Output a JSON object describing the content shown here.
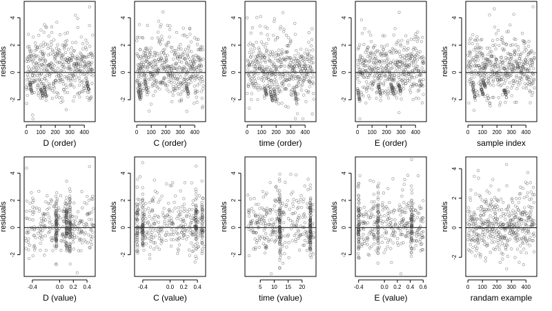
{
  "chart_data": [
    {
      "type": "scatter",
      "xlabel": "D (order)",
      "ylabel": "residuals",
      "xlim": [
        -15,
        475
      ],
      "ylim": [
        -3.6,
        5.2
      ],
      "xticks": [
        0,
        100,
        200,
        300,
        400
      ],
      "yticks": [
        -2,
        0,
        2,
        4
      ],
      "xtick_labels": [
        "0",
        "100",
        "200",
        "300",
        "400"
      ],
      "ytick_labels": [
        "-2",
        "0",
        "2",
        "4"
      ],
      "reference_line": 0,
      "grid": false,
      "gen": {
        "kind": "order",
        "seed": 11,
        "n": 460
      }
    },
    {
      "type": "scatter",
      "xlabel": "C (order)",
      "ylabel": "residuals",
      "xlim": [
        -15,
        475
      ],
      "ylim": [
        -3.6,
        5.2
      ],
      "xticks": [
        0,
        100,
        200,
        300,
        400
      ],
      "yticks": [
        -2,
        0,
        2,
        4
      ],
      "xtick_labels": [
        "0",
        "100",
        "200",
        "300",
        "400"
      ],
      "ytick_labels": [
        "-2",
        "0",
        "2",
        "4"
      ],
      "reference_line": 0,
      "grid": false,
      "gen": {
        "kind": "order",
        "seed": 23,
        "n": 460
      }
    },
    {
      "type": "scatter",
      "xlabel": "time (order)",
      "ylabel": "residuals",
      "xlim": [
        -15,
        475
      ],
      "ylim": [
        -3.6,
        5.2
      ],
      "xticks": [
        0,
        100,
        200,
        300,
        400
      ],
      "yticks": [
        -2,
        0,
        2,
        4
      ],
      "xtick_labels": [
        "0",
        "100",
        "200",
        "300",
        "400"
      ],
      "ytick_labels": [
        "-2",
        "0",
        "2",
        "4"
      ],
      "reference_line": 0,
      "grid": false,
      "gen": {
        "kind": "order",
        "seed": 37,
        "n": 460
      }
    },
    {
      "type": "scatter",
      "xlabel": "E (order)",
      "ylabel": "residuals",
      "xlim": [
        -15,
        475
      ],
      "ylim": [
        -3.6,
        5.2
      ],
      "xticks": [
        0,
        100,
        200,
        300,
        400
      ],
      "yticks": [
        -2,
        0,
        2,
        4
      ],
      "xtick_labels": [
        "0",
        "100",
        "200",
        "300",
        "400"
      ],
      "ytick_labels": [
        "-2",
        "0",
        "2",
        "4"
      ],
      "reference_line": 0,
      "grid": false,
      "gen": {
        "kind": "order",
        "seed": 41,
        "n": 460
      }
    },
    {
      "type": "scatter",
      "xlabel": "sample index",
      "ylabel": "residuals",
      "xlim": [
        -15,
        475
      ],
      "ylim": [
        -3.6,
        5.2
      ],
      "xticks": [
        0,
        100,
        200,
        300,
        400
      ],
      "yticks": [
        -2,
        0,
        2,
        4
      ],
      "xtick_labels": [
        "0",
        "100",
        "200",
        "300",
        "400"
      ],
      "ytick_labels": [
        "-2",
        "0",
        "2",
        "4"
      ],
      "reference_line": 0,
      "grid": false,
      "gen": {
        "kind": "order",
        "seed": 53,
        "n": 460
      }
    },
    {
      "type": "scatter",
      "xlabel": "D (value)",
      "ylabel": "residuals",
      "xlim": [
        -0.52,
        0.52
      ],
      "ylim": [
        -3.6,
        5.2
      ],
      "xticks": [
        -0.4,
        0,
        0.2,
        0.4
      ],
      "yticks": [
        -2,
        0,
        2,
        4
      ],
      "xtick_labels": [
        "-0.4",
        "0.0",
        "0.2",
        "0.4"
      ],
      "ytick_labels": [
        "-2",
        "0",
        "2",
        "4"
      ],
      "reference_line": 0,
      "grid": false,
      "gen": {
        "kind": "value",
        "seed": 61,
        "n": 460,
        "range": [
          -0.5,
          0.5
        ],
        "clusters": [
          -0.05,
          0.1,
          0.15
        ]
      }
    },
    {
      "type": "scatter",
      "xlabel": "C (value)",
      "ylabel": "residuals",
      "xlim": [
        -0.52,
        0.52
      ],
      "ylim": [
        -3.6,
        5.2
      ],
      "xticks": [
        -0.4,
        0,
        0.2,
        0.4
      ],
      "yticks": [
        -2,
        0,
        2,
        4
      ],
      "xtick_labels": [
        "-0.4",
        "0.0",
        "0.2",
        "0.4"
      ],
      "ytick_labels": [
        "-2",
        "0",
        "2",
        "4"
      ],
      "reference_line": 0,
      "grid": false,
      "gen": {
        "kind": "value",
        "seed": 71,
        "n": 460,
        "range": [
          -0.5,
          0.5
        ],
        "clusters": [
          -0.48,
          -0.4,
          0.38,
          0.47
        ]
      }
    },
    {
      "type": "scatter",
      "xlabel": "time (value)",
      "ylabel": "residuals",
      "xlim": [
        -0.5,
        25
      ],
      "ylim": [
        -3.6,
        5.2
      ],
      "xticks": [
        5,
        10,
        15,
        20
      ],
      "yticks": [
        -2,
        0,
        2,
        4
      ],
      "xtick_labels": [
        "5",
        "10",
        "15",
        "20"
      ],
      "ytick_labels": [
        "-2",
        "0",
        "2",
        "4"
      ],
      "reference_line": 0,
      "grid": false,
      "gen": {
        "kind": "value",
        "seed": 83,
        "n": 460,
        "range": [
          0.5,
          24.5
        ],
        "clusters": [
          12,
          23
        ]
      }
    },
    {
      "type": "scatter",
      "xlabel": "E (value)",
      "ylabel": "residuals",
      "xlim": [
        -0.45,
        0.65
      ],
      "ylim": [
        -3.6,
        5.2
      ],
      "xticks": [
        -0.4,
        0,
        0.2,
        0.4,
        0.6
      ],
      "yticks": [
        -2,
        0,
        2,
        4
      ],
      "xtick_labels": [
        "-0.4",
        "0.0",
        "0.2",
        "0.4",
        "0.6"
      ],
      "ytick_labels": [
        "-2",
        "0",
        "2",
        "4"
      ],
      "reference_line": 0,
      "grid": false,
      "gen": {
        "kind": "value",
        "seed": 97,
        "n": 460,
        "range": [
          -0.42,
          0.6
        ],
        "clusters": [
          -0.4,
          -0.1,
          0.42
        ]
      }
    },
    {
      "type": "scatter",
      "xlabel": "randam example",
      "ylabel": "residuals",
      "xlim": [
        -15,
        475
      ],
      "ylim": [
        -3.3,
        4.8
      ],
      "xticks": [
        0,
        100,
        200,
        300,
        400
      ],
      "yticks": [
        -2,
        0,
        2,
        4
      ],
      "xtick_labels": [
        "0",
        "100",
        "200",
        "300",
        "400"
      ],
      "ytick_labels": [
        "-2",
        "0",
        "2",
        "4"
      ],
      "reference_line": 0,
      "grid": false,
      "gen": {
        "kind": "random",
        "seed": 109,
        "n": 460
      }
    }
  ]
}
